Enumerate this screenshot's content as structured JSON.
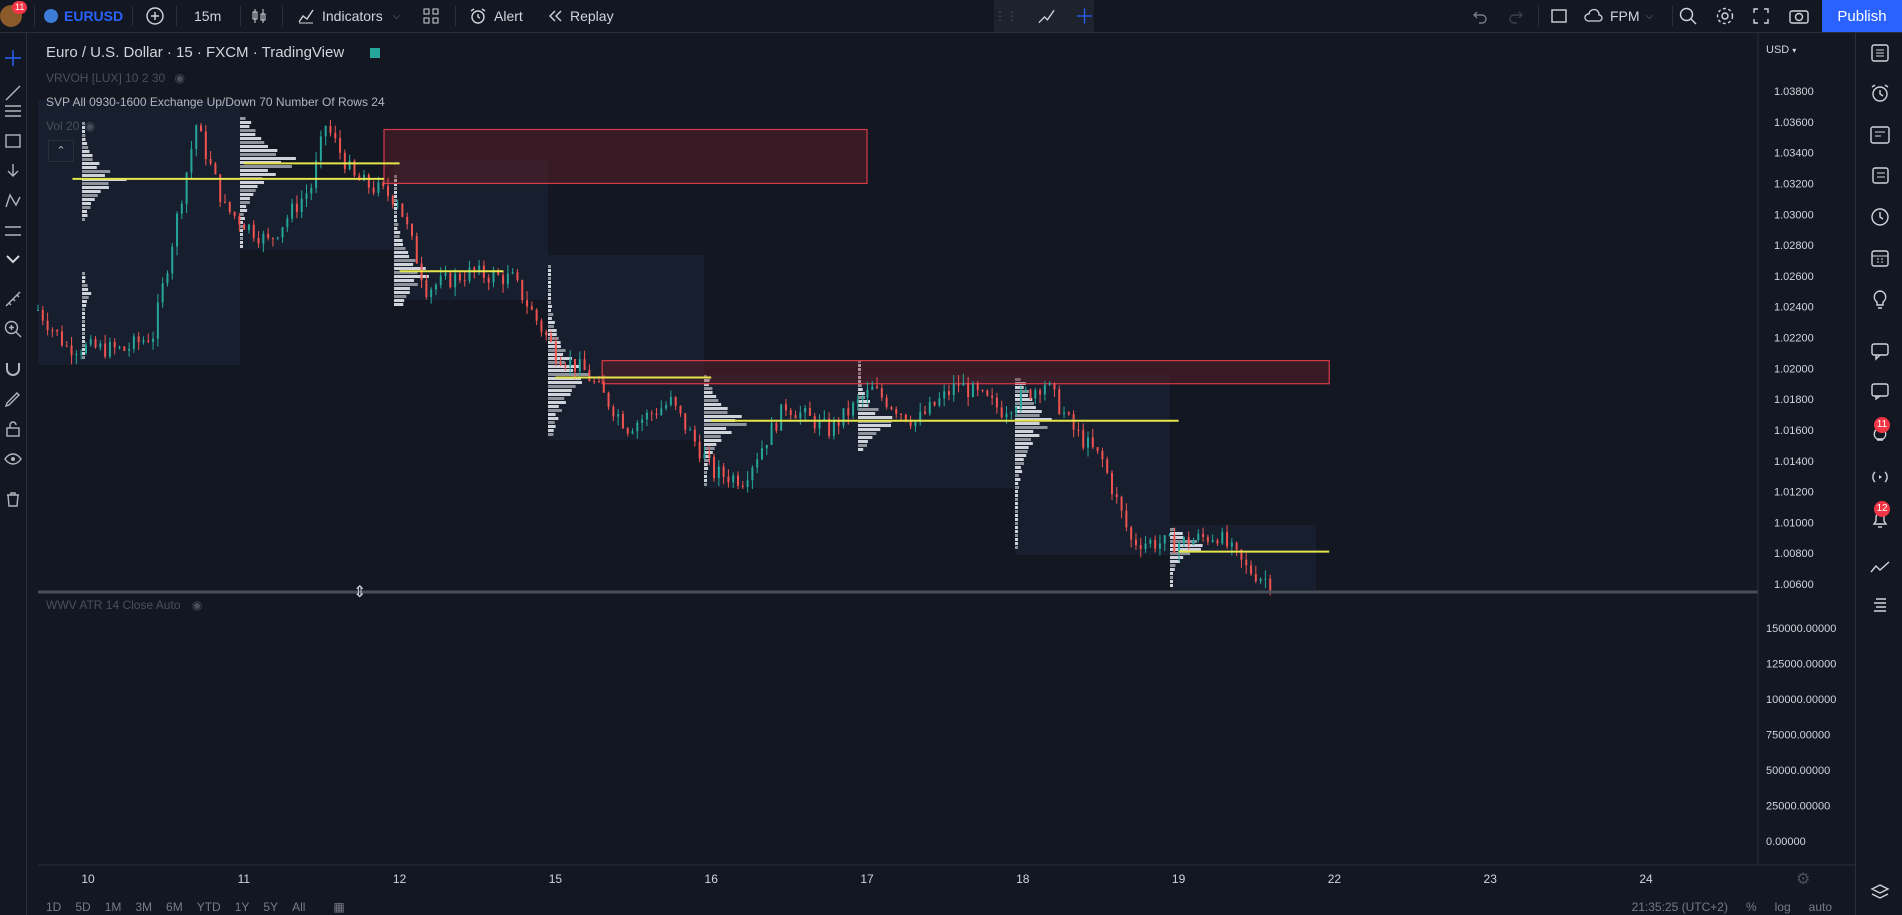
{
  "topbar": {
    "notifications_badge": "11",
    "symbol": "EURUSD",
    "interval": "15m",
    "indicators_label": "Indicators",
    "alert_label": "Alert",
    "replay_label": "Replay",
    "layout_name": "FPM",
    "publish_label": "Publish"
  },
  "legend": {
    "title": "Euro / U.S. Dollar · 15 · FXCM · TradingView",
    "line1": "VRVOH [LUX] 10 2 30",
    "line2": "SVP All 0930-1600 Exchange Up/Down 70 Number Of Rows 24",
    "line3": "Vol 20",
    "lower_pane": "WWV ATR 14 Close Auto"
  },
  "right_toolbar": {
    "badge_ideas": "11",
    "badge_notifications": "12"
  },
  "colors": {
    "background": "#131722",
    "up_candle": "#26a69a",
    "down_candle": "#ef5350",
    "poc_line": "#e5e54c",
    "zone_fill": "#7a1f26",
    "zone_border": "#d63b47",
    "accent": "#2962ff"
  },
  "chart_data": [
    {
      "type": "line",
      "title": "Euro / U.S. Dollar · 15 · FXCM · TradingView",
      "currency": "USD",
      "x_labels": [
        "10",
        "11",
        "12",
        "15",
        "16",
        "17",
        "18",
        "19",
        "22",
        "23",
        "24"
      ],
      "y_ticks": [
        "1.03800",
        "1.03600",
        "1.03400",
        "1.03200",
        "1.03000",
        "1.02800",
        "1.02600",
        "1.02400",
        "1.02200",
        "1.02000",
        "1.01800",
        "1.01600",
        "1.01400",
        "1.01200",
        "1.01000",
        "1.00800",
        "1.00600"
      ],
      "ylim": [
        1.006,
        1.038
      ],
      "approx_close_path": [
        [
          0,
          1.0238
        ],
        [
          2,
          1.0214
        ],
        [
          6,
          1.0212
        ],
        [
          8,
          1.0222
        ],
        [
          11,
          1.0358
        ],
        [
          13,
          1.0304
        ],
        [
          16,
          1.0282
        ],
        [
          19,
          1.0318
        ],
        [
          20,
          1.0358
        ],
        [
          22,
          1.0323
        ],
        [
          25,
          1.031
        ],
        [
          27,
          1.0252
        ],
        [
          30,
          1.0262
        ],
        [
          33,
          1.0258
        ],
        [
          36,
          1.021
        ],
        [
          38,
          1.0198
        ],
        [
          41,
          1.0162
        ],
        [
          44,
          1.0178
        ],
        [
          47,
          1.0132
        ],
        [
          49,
          1.0128
        ],
        [
          52,
          1.0176
        ],
        [
          55,
          1.016
        ],
        [
          58,
          1.0186
        ],
        [
          61,
          1.0165
        ],
        [
          64,
          1.019
        ],
        [
          67,
          1.0173
        ],
        [
          70,
          1.0191
        ],
        [
          72,
          1.016
        ],
        [
          74,
          1.014
        ],
        [
          76,
          1.0088
        ],
        [
          79,
          1.0086
        ],
        [
          82,
          1.0092
        ],
        [
          84,
          1.007
        ],
        [
          86,
          1.006
        ]
      ],
      "resistance_zones": [
        {
          "x_from": 11.9,
          "x_to": 17.0,
          "y_from": 1.032,
          "y_to": 1.0355
        },
        {
          "x_from": 15.3,
          "x_to": 21.9,
          "y_from": 1.019,
          "y_to": 1.0205
        }
      ],
      "poc_lines": [
        {
          "x_from": 9.9,
          "x_to": 11.9,
          "y": 1.0323
        },
        {
          "x_from": 11.0,
          "x_to": 12.0,
          "y": 1.0333
        },
        {
          "x_from": 12.0,
          "x_to": 14.0,
          "y": 1.0263
        },
        {
          "x_from": 15.0,
          "x_to": 16.0,
          "y": 1.0194
        },
        {
          "x_from": 16.0,
          "x_to": 18.0,
          "y": 1.0166
        },
        {
          "x_from": 18.0,
          "x_to": 19.0,
          "y": 1.0166
        },
        {
          "x_from": 19.0,
          "x_to": 21.9,
          "y": 1.0081
        }
      ]
    },
    {
      "type": "line",
      "title": "WWV ATR 14 Close Auto",
      "y_ticks": [
        "150000.00000",
        "125000.00000",
        "100000.00000",
        "75000.00000",
        "50000.00000",
        "25000.00000",
        "0.00000"
      ],
      "ylim": [
        0,
        150000
      ]
    }
  ],
  "bottom": {
    "timeframes": [
      "1D",
      "5D",
      "1M",
      "3M",
      "6M",
      "YTD",
      "1Y",
      "5Y",
      "All"
    ],
    "clock": "21:35:25 (UTC+2)",
    "percent": "%",
    "log": "log",
    "auto": "auto"
  }
}
